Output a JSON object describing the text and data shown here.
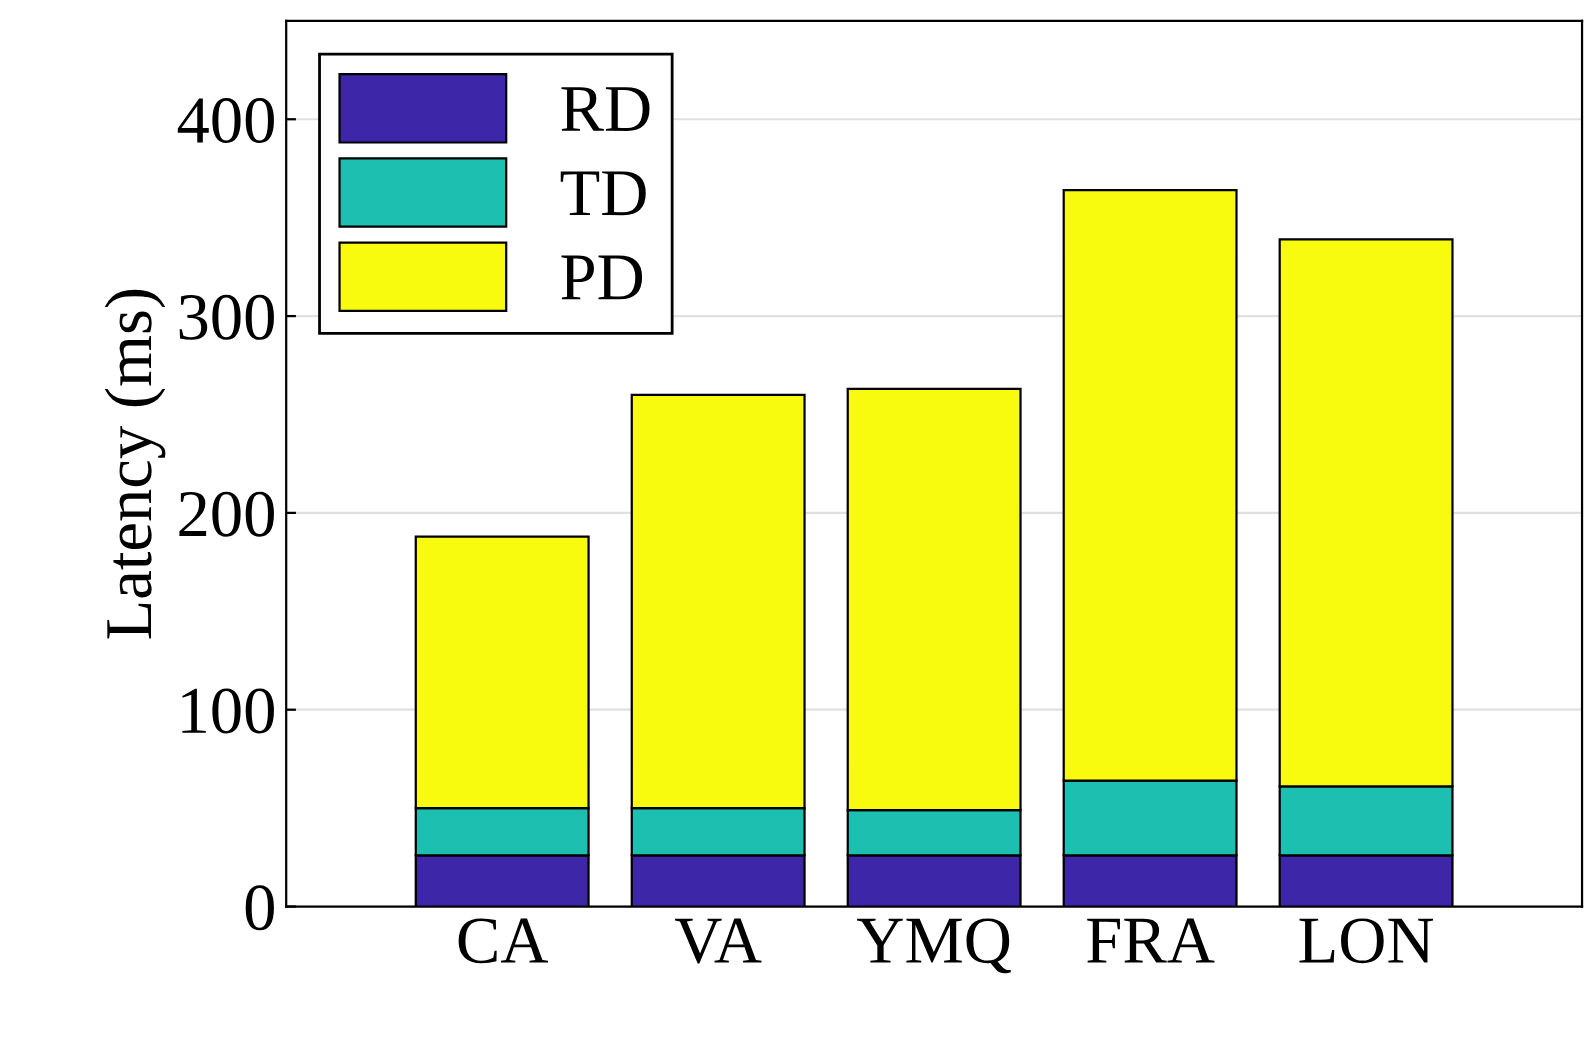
{
  "chart_data": {
    "type": "bar",
    "stacked": true,
    "ylabel": "Latency (ms)",
    "categories": [
      "CA",
      "VA",
      "YMQ",
      "FRA",
      "LON"
    ],
    "series": [
      {
        "name": "RD",
        "color": "#3e26a8",
        "values": [
          26,
          26,
          26,
          26,
          26
        ]
      },
      {
        "name": "TD",
        "color": "#1cbfb0",
        "values": [
          24,
          24,
          23,
          38,
          35
        ]
      },
      {
        "name": "PD",
        "color": "#f9fb0e",
        "values": [
          138,
          210,
          214,
          300,
          278
        ]
      }
    ],
    "ylim": [
      0,
      450
    ],
    "yticks": [
      0,
      100,
      200,
      300,
      400
    ],
    "grid": "y",
    "legend": "top left"
  }
}
